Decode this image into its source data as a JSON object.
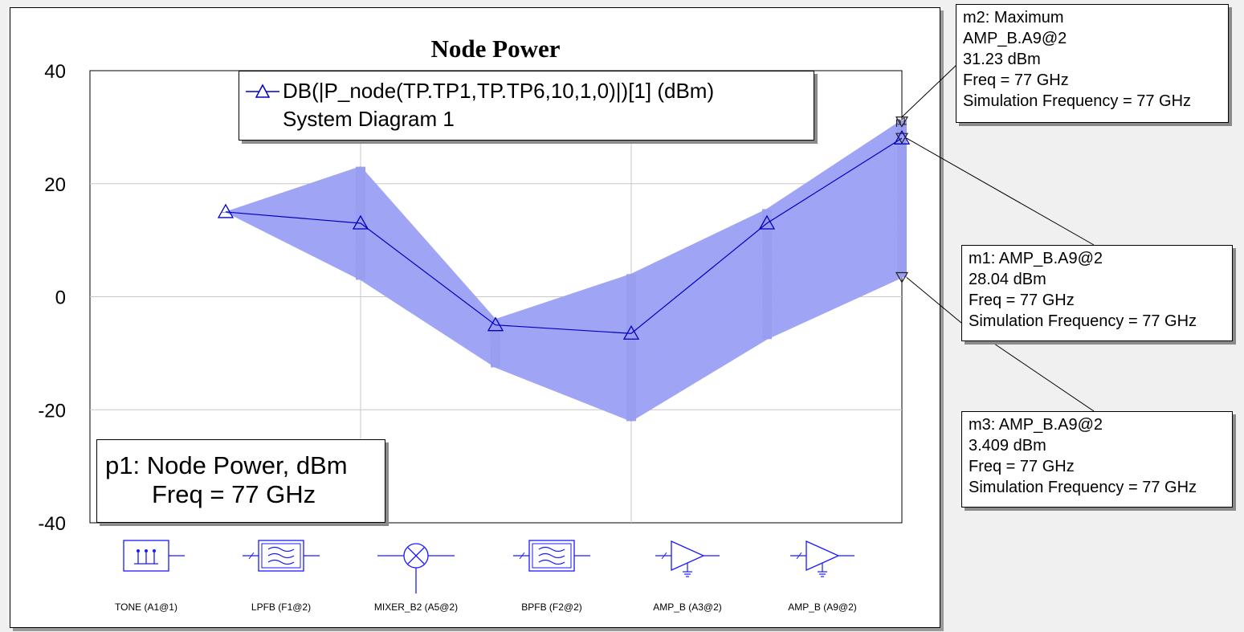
{
  "window": {
    "background": "#f0f0f0"
  },
  "chart_data": {
    "type": "line",
    "title": "Node Power",
    "xlabel": "",
    "ylabel": "",
    "ylim": [
      -40,
      40
    ],
    "yticks": [
      40,
      20,
      0,
      -20,
      -40
    ],
    "grid": true,
    "categories": [
      "TONE (A1@1)",
      "LPFB (F1@2)",
      "MIXER_B2 (A5@2)",
      "BPFB (F2@2)",
      "AMP_B (A3@2)",
      "AMP_B (A9@2)"
    ],
    "series": [
      {
        "name": "DB(|P_node(TP.TP1,TP.TP6,10,1,0)|)[1] (dBm)",
        "subname": "System Diagram 1",
        "values": [
          15,
          13,
          -5,
          -6.5,
          13,
          28.04
        ],
        "color": "#0000c0",
        "marker": "triangle"
      }
    ],
    "monte_carlo_band": {
      "color": "#a0a4f5",
      "min": [
        15,
        3,
        -12.5,
        -22,
        -7.5,
        3.409
      ],
      "max": [
        15,
        23,
        -4,
        4,
        15.5,
        31.23
      ]
    },
    "legend": {
      "placement": "top-center",
      "entry_label": "DB(|P_node(TP.TP1,TP.TP6,10,1,0)|)[1] (dBm)",
      "entry_sublabel": "System Diagram 1"
    },
    "components": [
      {
        "label": "TONE (A1@1)",
        "icon": "tone-source-icon"
      },
      {
        "label": "LPFB (F1@2)",
        "icon": "lowpass-filter-icon"
      },
      {
        "label": "MIXER_B2 (A5@2)",
        "icon": "mixer-icon"
      },
      {
        "label": "BPFB (F2@2)",
        "icon": "bandpass-filter-icon"
      },
      {
        "label": "AMP_B (A3@2)",
        "icon": "amplifier-icon"
      },
      {
        "label": "AMP_B (A9@2)",
        "icon": "amplifier-icon"
      }
    ],
    "markers": {
      "p1": {
        "tag": "p1",
        "line1": "p1: Node Power, dBm",
        "line2": "Freq = 77 GHz"
      },
      "m2": {
        "value": 31.23,
        "lines": [
          "m2: Maximum",
          "AMP_B.A9@2",
          "31.23 dBm",
          "Freq = 77 GHz",
          "Simulation Frequency = 77 GHz"
        ]
      },
      "m1": {
        "value": 28.04,
        "lines": [
          "m1: AMP_B.A9@2",
          "28.04 dBm",
          "Freq = 77 GHz",
          "Simulation Frequency = 77 GHz"
        ]
      },
      "m3": {
        "value": 3.409,
        "lines": [
          "m3: AMP_B.A9@2",
          "3.409 dBm",
          "Freq = 77 GHz",
          "Simulation Frequency = 77 GHz"
        ]
      }
    }
  }
}
